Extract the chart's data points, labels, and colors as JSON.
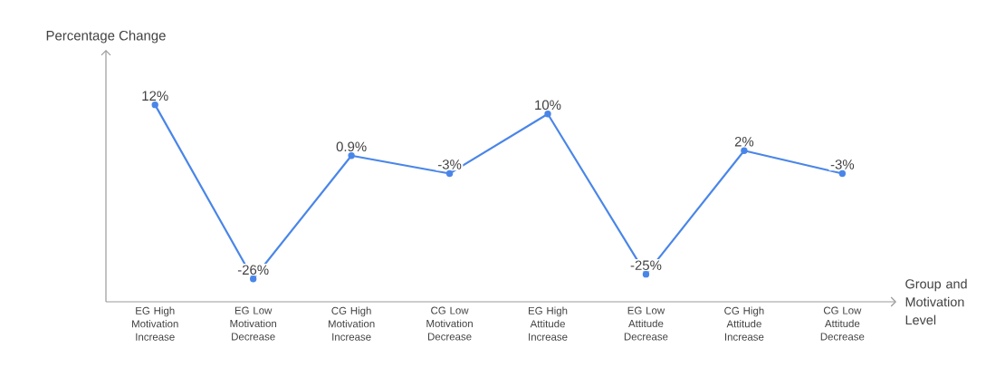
{
  "chart_data": {
    "type": "line",
    "ylabel": "Percentage Change",
    "xlabel": "Group and Motivation Level",
    "categories": [
      "EG High Motivation Increase",
      "EG Low Motivation Decrease",
      "CG High Motivation Increase",
      "CG Low Motivation Decrease",
      "EG High Attitude Increase",
      "EG Low Attitude Decrease",
      "CG High Attitude Increase",
      "CG Low Attitude Decrease"
    ],
    "series": [
      {
        "color": "#4a86e8",
        "values": [
          12,
          -26,
          0.9,
          -3,
          10,
          -25,
          2,
          -3
        ],
        "value_labels": [
          "12%",
          "-26%",
          "0.9%",
          "-3%",
          "10%",
          "-25%",
          "2%",
          "-3%"
        ]
      }
    ],
    "ylim": [
      -31,
      24
    ],
    "marker": "circle",
    "line_style": "solid",
    "grid": false
  }
}
